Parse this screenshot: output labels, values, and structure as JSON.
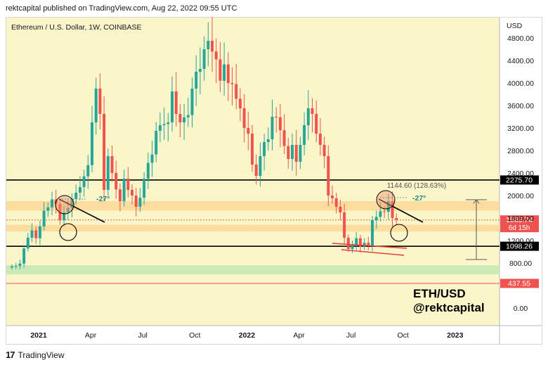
{
  "header": {
    "publisher_line": "rektcapital published on TradingView.com, Aug 22, 2022 09:55 UTC"
  },
  "footer": {
    "logo_text": "TradingView",
    "logo_mark": "17"
  },
  "watermark": {
    "line1": "ETH/USD",
    "line2": "@rektcapital"
  },
  "chart_data": {
    "type": "candlestick",
    "title": "Ethereum / U.S. Dollar, 1W, COINBASE",
    "y_unit": "USD",
    "y_ticks": [
      0,
      800,
      1200,
      1600,
      2000,
      2400,
      2800,
      3200,
      3600,
      4000,
      4400,
      4800
    ],
    "y_tick_labels": [
      "0.00",
      "800.00",
      "1200.00",
      "1600.00",
      "2000.00",
      "2400.00",
      "2800.00",
      "3200.00",
      "3600.00",
      "4000.00",
      "4400.00",
      "4800.00"
    ],
    "x_tick_labels": [
      "2021",
      "Apr",
      "Jul",
      "Oct",
      "2022",
      "Apr",
      "Jul",
      "Oct",
      "2023"
    ],
    "x_tick_weeks": [
      0,
      13,
      26,
      39,
      52,
      65,
      78,
      91,
      104
    ],
    "colors": {
      "up": "#26a69a",
      "down": "#ef5350",
      "background": "#fbf6c9",
      "orange_zone": "#fcd99a",
      "green_zone": "#c6e9b4"
    },
    "closes": [
      740,
      750,
      790,
      1060,
      1250,
      1380,
      1240,
      1450,
      1730,
      1790,
      1930,
      1850,
      1560,
      1700,
      1780,
      1940,
      2050,
      2150,
      2340,
      2540,
      3300,
      3900,
      3450,
      2100,
      2700,
      2400,
      2110,
      1900,
      2300,
      2100,
      2000,
      1800,
      1960,
      2300,
      2580,
      2730,
      3150,
      3250,
      3270,
      3300,
      3850,
      3450,
      3300,
      3390,
      3430,
      3900,
      4200,
      4250,
      4600,
      4750,
      4560,
      4420,
      4040,
      4330,
      4000,
      3980,
      3720,
      3550,
      3200,
      3100,
      2550,
      2350,
      2700,
      2950,
      3000,
      3400,
      3390,
      3160,
      2880,
      2650,
      2900,
      2600,
      2900,
      3250,
      3550,
      3450,
      3100,
      2900,
      2700,
      2000,
      1950,
      1800,
      1700,
      1250,
      1050,
      1120,
      1240,
      1090,
      1160,
      1100,
      1560,
      1620,
      1720,
      1710,
      1900,
      1600,
      1570
    ],
    "levels": [
      {
        "label": "2275.70",
        "value": 2275.7,
        "color": "#000000"
      },
      {
        "label": "1565.74",
        "sublabel": "6d 15h",
        "value": 1565.74,
        "color": "#ef5350"
      },
      {
        "label": "1098.26",
        "value": 1098.26,
        "color": "#000000"
      },
      {
        "label": "437.55",
        "value": 437.55,
        "color": "#ef5350"
      }
    ],
    "zones": [
      {
        "name": "upper-orange",
        "low": 1730,
        "high": 1900
      },
      {
        "name": "lower-orange",
        "low": 1360,
        "high": 1480
      },
      {
        "name": "green",
        "low": 600,
        "high": 760
      }
    ],
    "measure_label": "1144.60 (128.63%)",
    "angle_label_1": "-27°",
    "angle_label_2": "-27°"
  }
}
